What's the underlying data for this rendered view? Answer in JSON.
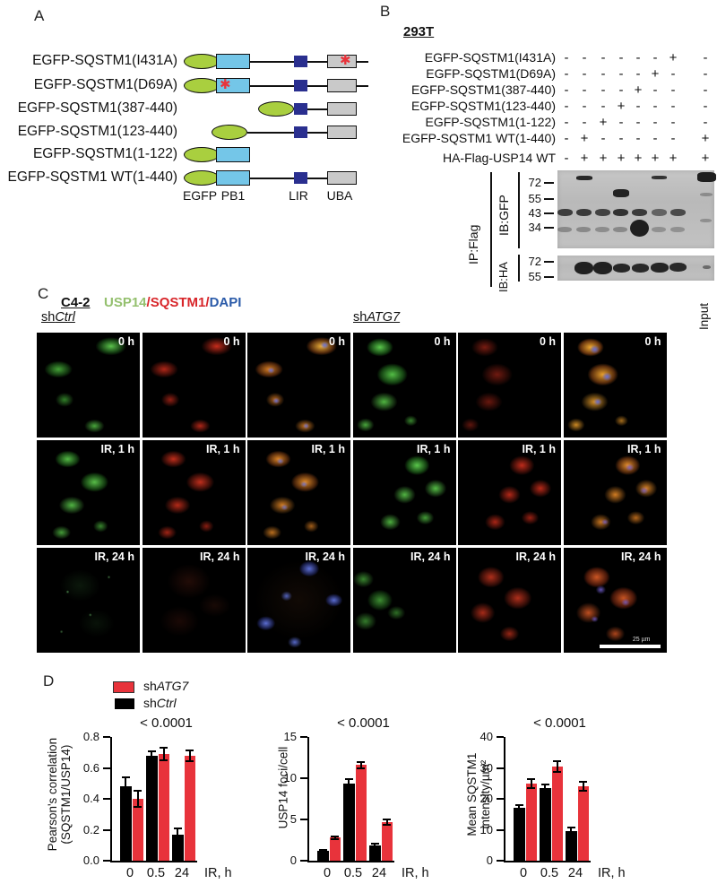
{
  "figure": {
    "panel_a": {
      "label": "A",
      "constructs": [
        {
          "name": "EGFP-SQSTM1(I431A)"
        },
        {
          "name": "EGFP-SQSTM1(D69A)"
        },
        {
          "name": "EGFP-SQSTM1(387-440)"
        },
        {
          "name": "EGFP-SQSTM1(123-440)"
        },
        {
          "name": "EGFP-SQSTM1(1-122)"
        },
        {
          "name": "EGFP-SQSTM1 WT(1-440)"
        }
      ],
      "domains": [
        "EGFP",
        "PB1",
        "LIR",
        "UBA"
      ],
      "mutation_marker": "✱"
    },
    "panel_b": {
      "label": "B",
      "cell_line": "293T",
      "rows": [
        {
          "label": "EGFP-SQSTM1(I431A)",
          "lanes": [
            "-",
            "-",
            "-",
            "-",
            "-",
            "-",
            "+"
          ],
          "input": "-"
        },
        {
          "label": "EGFP-SQSTM1(D69A)",
          "lanes": [
            "-",
            "-",
            "-",
            "-",
            "-",
            "+",
            "-"
          ],
          "input": "-"
        },
        {
          "label": "EGFP-SQSTM1(387-440)",
          "lanes": [
            "-",
            "-",
            "-",
            "-",
            "+",
            "-",
            "-"
          ],
          "input": "-"
        },
        {
          "label": "EGFP-SQSTM1(123-440)",
          "lanes": [
            "-",
            "-",
            "-",
            "+",
            "-",
            "-",
            "-"
          ],
          "input": "-"
        },
        {
          "label": "EGFP-SQSTM1(1-122)",
          "lanes": [
            "-",
            "-",
            "+",
            "-",
            "-",
            "-",
            "-"
          ],
          "input": "-"
        },
        {
          "label": "EGFP-SQSTM1 WT(1-440)",
          "lanes": [
            "-",
            "+",
            "-",
            "-",
            "-",
            "-",
            "-"
          ],
          "input": "+"
        },
        {
          "label": "HA-Flag-USP14 WT",
          "lanes": [
            "-",
            "+",
            "+",
            "+",
            "+",
            "+",
            "+"
          ],
          "input": "+"
        }
      ],
      "ip_label": "IP:Flag",
      "blot_gfp": {
        "label": "IB:GFP",
        "markers": [
          "72",
          "55",
          "43",
          "34"
        ]
      },
      "blot_ha": {
        "label": "IB:HA",
        "markers": [
          "72",
          "55"
        ]
      },
      "input_label": "Input"
    },
    "panel_c": {
      "label": "C",
      "cell_line": "C4-2",
      "stains": [
        {
          "text": "USP14",
          "color": "#94c06e"
        },
        {
          "text": "/",
          "color": "#d8262a"
        },
        {
          "text": "SQSTM1",
          "color": "#d8262a"
        },
        {
          "text": "/",
          "color": "#d8262a"
        },
        {
          "text": "DAPI",
          "color": "#2b5ba9"
        }
      ],
      "groups": [
        {
          "prefix": "sh",
          "gene": "Ctrl"
        },
        {
          "prefix": "sh",
          "gene": "ATG7"
        }
      ],
      "timepoints": [
        "0 h",
        "IR, 1 h",
        "IR, 24 h"
      ],
      "scale_bar_label": "25 µm"
    },
    "panel_d": {
      "label": "D",
      "legend": [
        {
          "prefix": "sh",
          "gene": "ATG7",
          "color": "#e8333b"
        },
        {
          "prefix": "sh",
          "gene": "Ctrl",
          "color": "#000000"
        }
      ]
    }
  },
  "chart_data": [
    {
      "type": "bar",
      "annotation": "< 0.0001",
      "categories": [
        "0",
        "0.5",
        "24"
      ],
      "series": [
        {
          "name": "shCtrl",
          "color": "#000000",
          "values": [
            0.48,
            0.68,
            0.17
          ],
          "errors": [
            0.06,
            0.025,
            0.04
          ]
        },
        {
          "name": "shATG7",
          "color": "#e8333b",
          "values": [
            0.4,
            0.69,
            0.68
          ],
          "errors": [
            0.05,
            0.04,
            0.035
          ]
        }
      ],
      "ylabel": "Pearson's correlation (SQSTM1/USP14)",
      "ylabel_lines": [
        "Pearson's correlation",
        "(SQSTM1/USP14)"
      ],
      "xlabel": "IR, h",
      "ylim": [
        0,
        0.8
      ],
      "yticks": [
        0,
        0.2,
        0.4,
        0.6,
        0.8
      ],
      "ytick_labels": [
        "0.0",
        "0.2",
        "0.4",
        "0.6",
        "0.8"
      ]
    },
    {
      "type": "bar",
      "annotation": "< 0.0001",
      "categories": [
        "0",
        "0.5",
        "24"
      ],
      "series": [
        {
          "name": "shCtrl",
          "color": "#000000",
          "values": [
            1.2,
            9.4,
            1.9
          ],
          "errors": [
            0.1,
            0.5,
            0.15
          ]
        },
        {
          "name": "shATG7",
          "color": "#e8333b",
          "values": [
            2.8,
            11.6,
            4.7
          ],
          "errors": [
            0.15,
            0.35,
            0.3
          ]
        }
      ],
      "ylabel": "USP14 foci/cell",
      "ylabel_lines": [
        "USP14 foci/cell"
      ],
      "xlabel": "IR, h",
      "ylim": [
        0,
        15
      ],
      "yticks": [
        0,
        5,
        10,
        15
      ],
      "ytick_labels": [
        "0",
        "5",
        "10",
        "15"
      ]
    },
    {
      "type": "bar",
      "annotation": "< 0.0001",
      "categories": [
        "0",
        "0.5",
        "24"
      ],
      "series": [
        {
          "name": "shCtrl",
          "color": "#000000",
          "values": [
            17,
            23.5,
            9.5
          ],
          "errors": [
            1.0,
            1.0,
            1.2
          ]
        },
        {
          "name": "shATG7",
          "color": "#e8333b",
          "values": [
            25,
            30.5,
            24
          ],
          "errors": [
            1.5,
            1.8,
            1.5
          ]
        }
      ],
      "ylabel": "Mean SQSTM1 intensity/µm²",
      "ylabel_lines": [
        "Mean SQSTM1",
        "intensity/µm²"
      ],
      "xlabel": "IR, h",
      "ylim": [
        0,
        40
      ],
      "yticks": [
        0,
        10,
        20,
        30,
        40
      ],
      "ytick_labels": [
        "0",
        "10",
        "20",
        "30",
        "40"
      ]
    }
  ]
}
